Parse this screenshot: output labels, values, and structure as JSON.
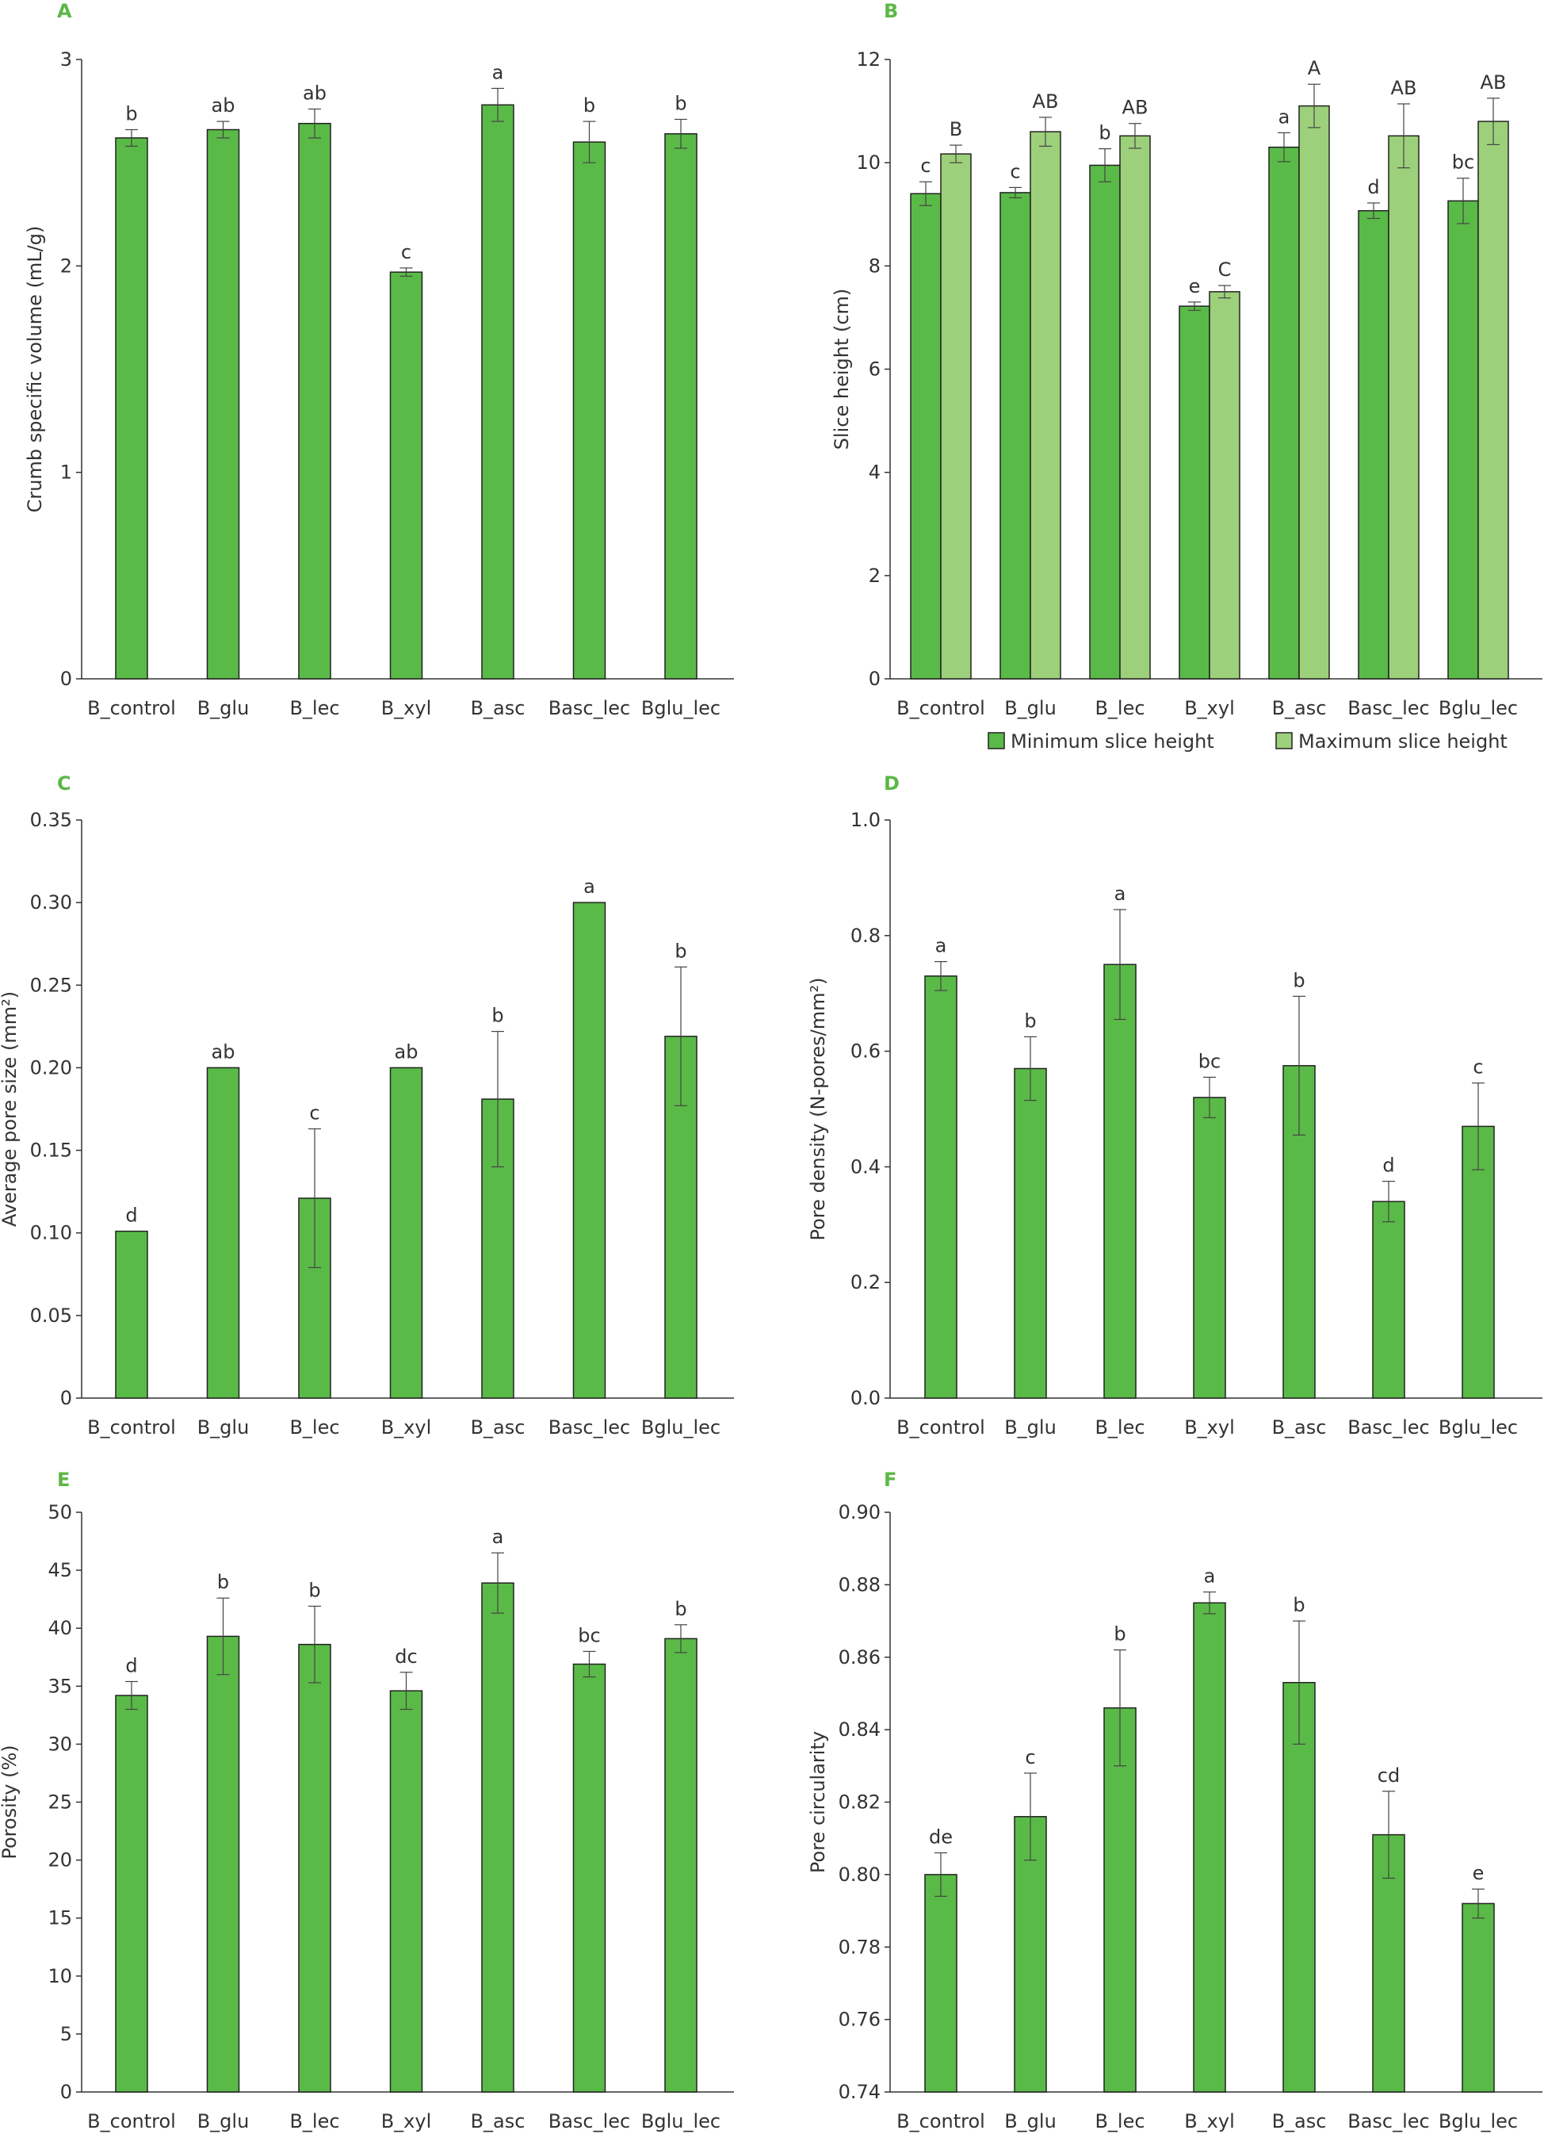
{
  "chart_data": [
    {
      "panel": "A",
      "type": "bar",
      "ylabel": "Crumb specific volume (mL/g)",
      "ylim": [
        0,
        3
      ],
      "yticks": [
        "0",
        "1",
        "2",
        "3"
      ],
      "ytick_values": [
        0,
        1,
        2,
        3
      ],
      "categories": [
        "B_control",
        "B_glu",
        "B_lec",
        "B_xyl",
        "B_asc",
        "Basc_lec",
        "Bglu_lec"
      ],
      "series": [
        {
          "name": "Crumb specific volume",
          "color": "#5aba47",
          "values": [
            2.62,
            2.66,
            2.69,
            1.97,
            2.78,
            2.6,
            2.64
          ],
          "errors": [
            0.04,
            0.04,
            0.07,
            0.02,
            0.08,
            0.1,
            0.07
          ],
          "letters": [
            "b",
            "ab",
            "ab",
            "c",
            "a",
            "b",
            "b"
          ]
        }
      ]
    },
    {
      "panel": "B",
      "type": "bar",
      "ylabel": "Slice height (cm)",
      "ylim": [
        0,
        12
      ],
      "yticks": [
        "0",
        "2",
        "4",
        "6",
        "8",
        "10",
        "12"
      ],
      "ytick_values": [
        0,
        2,
        4,
        6,
        8,
        10,
        12
      ],
      "categories": [
        "B_control",
        "B_glu",
        "B_lec",
        "B_xyl",
        "B_asc",
        "Basc_lec",
        "Bglu_lec"
      ],
      "legend": "bottom",
      "series": [
        {
          "name": "Minimum slice height",
          "color": "#5aba47",
          "values": [
            9.4,
            9.42,
            9.95,
            7.22,
            10.3,
            9.07,
            9.26
          ],
          "errors": [
            0.23,
            0.1,
            0.32,
            0.08,
            0.28,
            0.15,
            0.44
          ],
          "letters": [
            "c",
            "c",
            "b",
            "e",
            "a",
            "d",
            "bc"
          ]
        },
        {
          "name": "Maximum slice height",
          "color": "#9dd07a",
          "values": [
            10.17,
            10.6,
            10.52,
            7.5,
            11.1,
            10.52,
            10.8
          ],
          "errors": [
            0.17,
            0.28,
            0.24,
            0.12,
            0.42,
            0.62,
            0.45
          ],
          "letters": [
            "B",
            "AB",
            "AB",
            "C",
            "A",
            "AB",
            "AB"
          ]
        }
      ]
    },
    {
      "panel": "C",
      "type": "bar",
      "ylabel": "Average pore size (mm²)",
      "ylim": [
        0,
        0.35
      ],
      "yticks": [
        "0",
        "0.05",
        "0.10",
        "0.15",
        "0.20",
        "0.25",
        "0.30",
        "0.35"
      ],
      "ytick_values": [
        0,
        0.05,
        0.1,
        0.15,
        0.2,
        0.25,
        0.3,
        0.35
      ],
      "categories": [
        "B_control",
        "B_glu",
        "B_lec",
        "B_xyl",
        "B_asc",
        "Basc_lec",
        "Bglu_lec"
      ],
      "series": [
        {
          "name": "Average pore size",
          "color": "#5aba47",
          "values": [
            0.101,
            0.2,
            0.121,
            0.2,
            0.181,
            0.3,
            0.219
          ],
          "errors": [
            0,
            0,
            0.042,
            0,
            0.041,
            0,
            0.042
          ],
          "letters": [
            "d",
            "ab",
            "c",
            "ab",
            "b",
            "a",
            "b"
          ]
        }
      ]
    },
    {
      "panel": "D",
      "type": "bar",
      "ylabel": "Pore density (N-pores/mm²)",
      "ylim": [
        0,
        1.0
      ],
      "yticks": [
        "0.0",
        "0.2",
        "0.4",
        "0.6",
        "0.8",
        "1.0"
      ],
      "ytick_values": [
        0,
        0.2,
        0.4,
        0.6,
        0.8,
        1.0
      ],
      "categories": [
        "B_control",
        "B_glu",
        "B_lec",
        "B_xyl",
        "B_asc",
        "Basc_lec",
        "Bglu_lec"
      ],
      "series": [
        {
          "name": "Pore density",
          "color": "#5aba47",
          "values": [
            0.73,
            0.57,
            0.75,
            0.52,
            0.575,
            0.34,
            0.47
          ],
          "errors": [
            0.025,
            0.055,
            0.095,
            0.035,
            0.12,
            0.035,
            0.075
          ],
          "letters": [
            "a",
            "b",
            "a",
            "bc",
            "b",
            "d",
            "c"
          ]
        }
      ]
    },
    {
      "panel": "E",
      "type": "bar",
      "ylabel": "Porosity (%)",
      "ylim": [
        0,
        50
      ],
      "yticks": [
        "0",
        "5",
        "10",
        "15",
        "20",
        "25",
        "30",
        "35",
        "40",
        "45",
        "50"
      ],
      "ytick_values": [
        0,
        5,
        10,
        15,
        20,
        25,
        30,
        35,
        40,
        45,
        50
      ],
      "categories": [
        "B_control",
        "B_glu",
        "B_lec",
        "B_xyl",
        "B_asc",
        "Basc_lec",
        "Bglu_lec"
      ],
      "series": [
        {
          "name": "Porosity",
          "color": "#5aba47",
          "values": [
            34.2,
            39.3,
            38.6,
            34.6,
            43.9,
            36.9,
            39.1
          ],
          "errors": [
            1.2,
            3.3,
            3.3,
            1.6,
            2.6,
            1.1,
            1.2
          ],
          "letters": [
            "d",
            "b",
            "b",
            "dc",
            "a",
            "bc",
            "b"
          ]
        }
      ]
    },
    {
      "panel": "F",
      "type": "bar",
      "ylabel": "Pore circularity",
      "ylim": [
        0.74,
        0.9
      ],
      "yticks": [
        "0.74",
        "0.76",
        "0.78",
        "0.80",
        "0.82",
        "0.84",
        "0.86",
        "0.88",
        "0.90"
      ],
      "ytick_values": [
        0.74,
        0.76,
        0.78,
        0.8,
        0.82,
        0.84,
        0.86,
        0.88,
        0.9
      ],
      "categories": [
        "B_control",
        "B_glu",
        "B_lec",
        "B_xyl",
        "B_asc",
        "Basc_lec",
        "Bglu_lec"
      ],
      "series": [
        {
          "name": "Pore circularity",
          "color": "#5aba47",
          "values": [
            0.8,
            0.816,
            0.846,
            0.875,
            0.853,
            0.811,
            0.792
          ],
          "errors": [
            0.006,
            0.012,
            0.016,
            0.003,
            0.017,
            0.012,
            0.004
          ],
          "letters": [
            "de",
            "c",
            "b",
            "a",
            "b",
            "cd",
            "e"
          ]
        }
      ]
    }
  ]
}
